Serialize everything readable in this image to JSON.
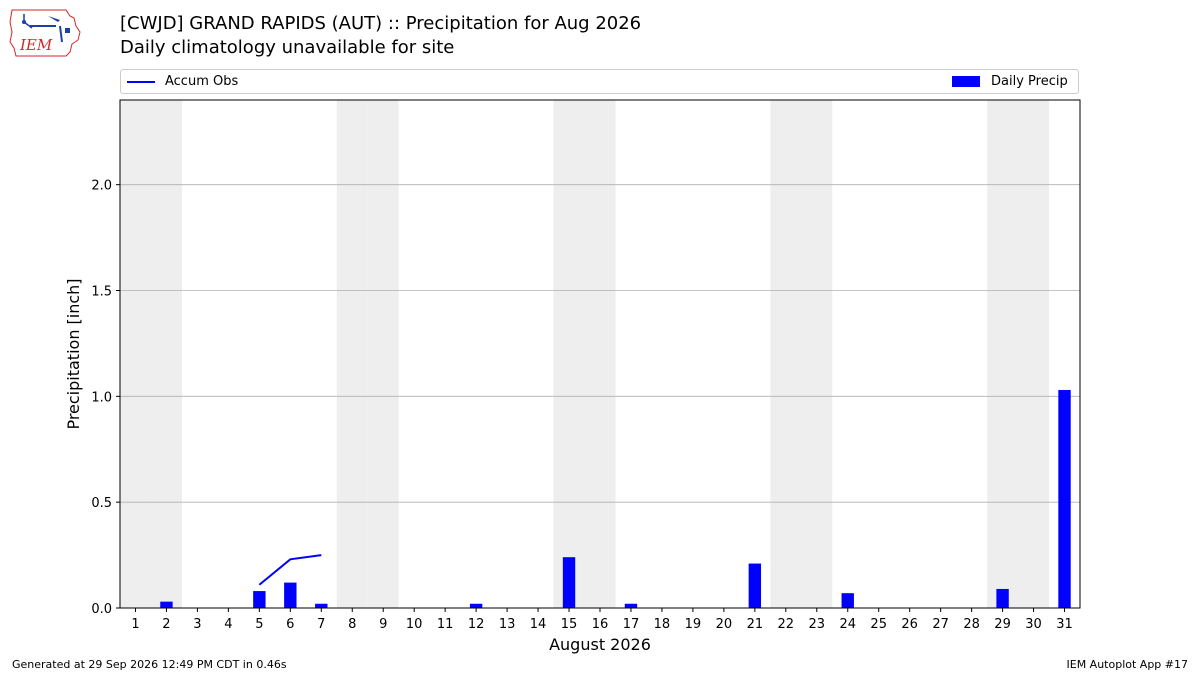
{
  "header": {
    "title": "[CWJD] GRAND RAPIDS (AUT) :: Precipitation for Aug 2026",
    "subtitle": "Daily climatology unavailable for site"
  },
  "logo": {
    "text": "IEM",
    "color": "#d62728"
  },
  "legend": {
    "line_label": "Accum Obs",
    "bar_label": "Daily Precip"
  },
  "footer": {
    "generated": "Generated at 29 Sep 2026 12:49 PM CDT in 0.46s",
    "app": "IEM Autoplot App #17"
  },
  "colors": {
    "bar": "#0000ff",
    "line": "#0000ff",
    "weekend_shade": "#eeeeee",
    "grid": "#b0b0b0"
  },
  "chart_data": {
    "type": "bar",
    "xlabel": "August 2026",
    "ylabel": "Precipitation [inch]",
    "xlim": [
      0.5,
      31.5
    ],
    "ylim": [
      0,
      2.4
    ],
    "yticks": [
      0.0,
      0.5,
      1.0,
      1.5,
      2.0
    ],
    "ytick_labels": [
      "0.0",
      "0.5",
      "1.0",
      "1.5",
      "2.0"
    ],
    "categories": [
      1,
      2,
      3,
      4,
      5,
      6,
      7,
      8,
      9,
      10,
      11,
      12,
      13,
      14,
      15,
      16,
      17,
      18,
      19,
      20,
      21,
      22,
      23,
      24,
      25,
      26,
      27,
      28,
      29,
      30,
      31
    ],
    "grid": "horizontal",
    "shaded_weekend_days": [
      1,
      2,
      8,
      9,
      15,
      16,
      22,
      23,
      29,
      30
    ],
    "series": [
      {
        "name": "Daily Precip",
        "type": "bar",
        "values": [
          0,
          0.03,
          0,
          0,
          0.08,
          0.12,
          0.02,
          0,
          0,
          0,
          0,
          0.02,
          0,
          0,
          0.24,
          0,
          0.02,
          0,
          0,
          0,
          0.21,
          0,
          0,
          0.07,
          0,
          0,
          0,
          0,
          0.09,
          0,
          1.03
        ]
      },
      {
        "name": "Accum Obs",
        "type": "line",
        "points": [
          [
            5,
            0.11
          ],
          [
            6,
            0.23
          ],
          [
            7,
            0.25
          ]
        ]
      }
    ]
  }
}
